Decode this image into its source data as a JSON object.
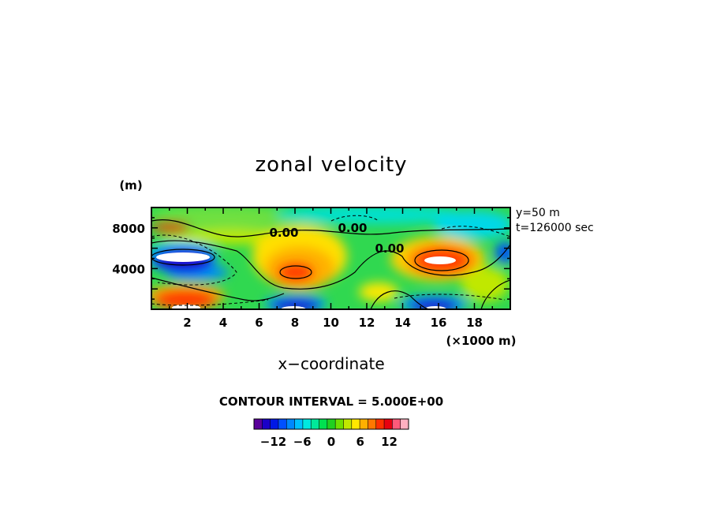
{
  "chart_data": {
    "type": "heatmap",
    "title": "zonal velocity",
    "xlabel": "x−coordinate",
    "x_unit": "(×1000 m)",
    "y_unit": "(m)",
    "xlim": [
      0,
      20
    ],
    "ylim": [
      0,
      10000
    ],
    "x_ticks": [
      "2",
      "4",
      "6",
      "8",
      "10",
      "12",
      "14",
      "16",
      "18"
    ],
    "y_ticks": [
      "4000",
      "8000"
    ],
    "annotation_lines": [
      "y=50 m",
      "t=126000 sec"
    ],
    "contour_interval_text": "CONTOUR INTERVAL = 5.000E+00",
    "contour_labels": [
      "0.00",
      "0.00",
      "0.00"
    ],
    "colorbar_ticks": [
      "−12",
      "−6",
      "0",
      "6",
      "12"
    ],
    "colorbar_range": [
      -16,
      16
    ],
    "colorbar_colors": [
      "#5a009a",
      "#1a00c8",
      "#0018e6",
      "#0050ff",
      "#0088ff",
      "#00c0ff",
      "#00e8e0",
      "#00e89a",
      "#00e050",
      "#20d020",
      "#70e000",
      "#c0e800",
      "#ffe800",
      "#ffb000",
      "#ff7800",
      "#ff3000",
      "#e80010",
      "#ff5a7a",
      "#ffb0c0"
    ],
    "grid": false,
    "features": [
      {
        "x": 2.2,
        "y": 5700,
        "value": -16,
        "note": "strong negative band"
      },
      {
        "x": 2.0,
        "y": 400,
        "value": 15,
        "note": "strong positive near bottom"
      },
      {
        "x": 8.0,
        "y": 3500,
        "value": 14,
        "note": "positive core"
      },
      {
        "x": 16.5,
        "y": 4700,
        "value": 16,
        "note": "positive core"
      },
      {
        "x": 8.0,
        "y": 300,
        "value": -14,
        "note": "negative near bottom"
      },
      {
        "x": 16.0,
        "y": 300,
        "value": -14,
        "note": "negative near bottom"
      },
      {
        "x": 1.5,
        "y": 8000,
        "value": 12,
        "note": "positive near top"
      },
      {
        "x": 10.5,
        "y": 9000,
        "value": -4,
        "note": "weak negative"
      },
      {
        "x": 18.0,
        "y": 7500,
        "value": -5,
        "note": "weak negative"
      }
    ]
  }
}
